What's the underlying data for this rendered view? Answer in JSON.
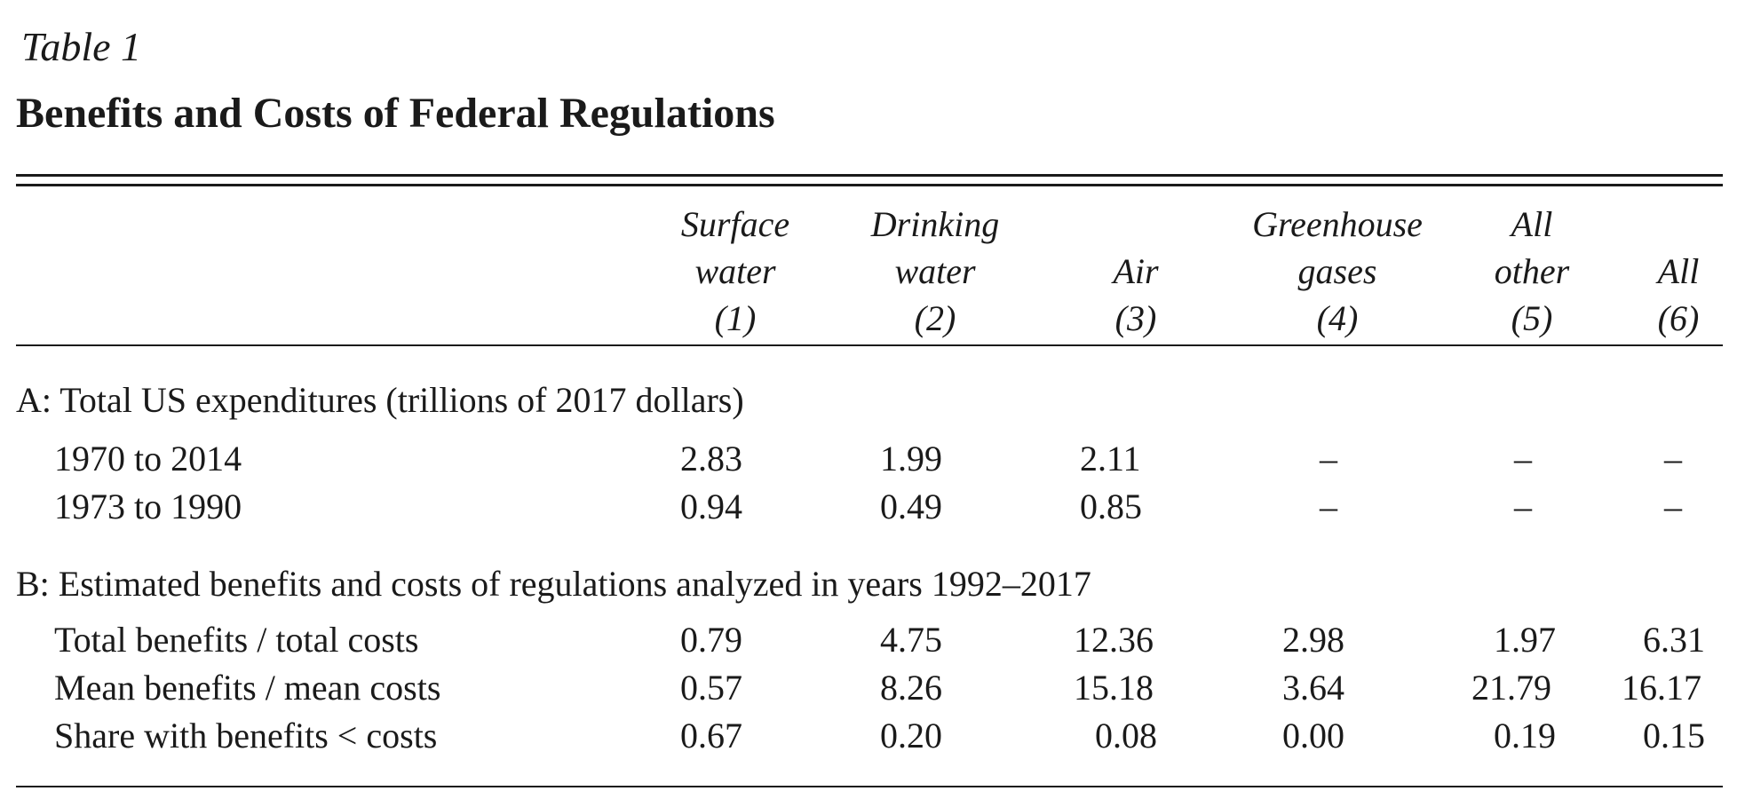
{
  "table": {
    "label": "Table 1",
    "title": "Benefits and Costs of Federal Regulations",
    "columns": [
      {
        "lines": [
          "Surface",
          "water",
          "(1)"
        ]
      },
      {
        "lines": [
          "Drinking",
          "water",
          "(2)"
        ]
      },
      {
        "lines": [
          "",
          "Air",
          "(3)"
        ]
      },
      {
        "lines": [
          "Greenhouse",
          "gases",
          "(4)"
        ]
      },
      {
        "lines": [
          "All",
          "other",
          "(5)"
        ]
      },
      {
        "lines": [
          "",
          "All",
          "(6)"
        ]
      }
    ],
    "panels": [
      {
        "title": "A: Total US expenditures (trillions of 2017 dollars)",
        "rows": [
          {
            "label": "1970 to 2014",
            "values": [
              "2.83",
              "1.99",
              "2.11",
              "–",
              "–",
              "–"
            ]
          },
          {
            "label": "1973 to 1990",
            "values": [
              "0.94",
              "0.49",
              "0.85",
              "–",
              "–",
              "–"
            ]
          }
        ]
      },
      {
        "title": "B: Estimated benefits and costs of regulations analyzed in years 1992–2017",
        "rows": [
          {
            "label": "Total benefits / total costs",
            "values": [
              "0.79",
              "4.75",
              "12.36",
              "2.98",
              "1.97",
              "6.31"
            ]
          },
          {
            "label": "Mean benefits / mean costs",
            "values": [
              "0.57",
              "8.26",
              "15.18",
              "3.64",
              "21.79",
              "16.17"
            ]
          },
          {
            "label": "Share with benefits < costs",
            "values": [
              "0.67",
              "0.20",
              "0.08",
              "0.00",
              "0.19",
              "0.15"
            ]
          }
        ]
      }
    ]
  }
}
